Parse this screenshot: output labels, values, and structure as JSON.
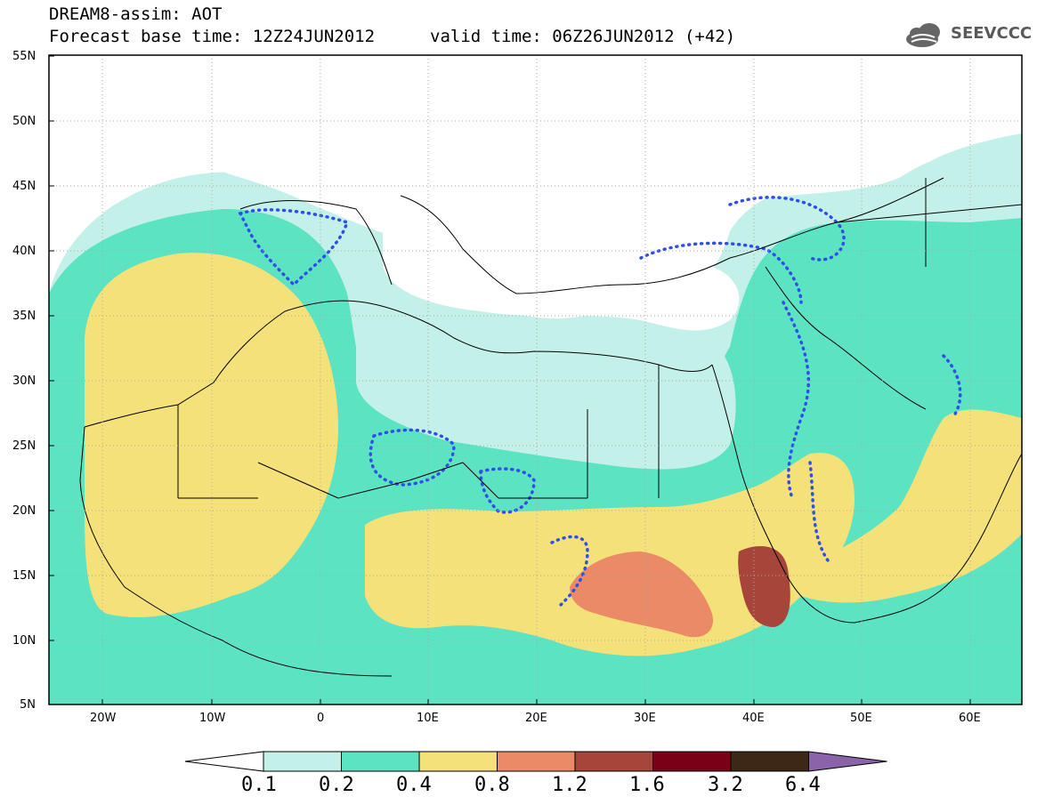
{
  "header": {
    "line1": "DREAM8-assim: AOT",
    "line2": "Forecast base time: 12Z24JUN2012",
    "valid": "valid time: 06Z26JUN2012 (+42)"
  },
  "logo": {
    "text": "SEEVCCC",
    "icon": "cloud-logo-icon"
  },
  "axes": {
    "lat_labels": [
      "55N",
      "50N",
      "45N",
      "40N",
      "35N",
      "30N",
      "25N",
      "20N",
      "15N",
      "10N",
      "5N"
    ],
    "lon_labels": [
      "20W",
      "10W",
      "0",
      "10E",
      "20E",
      "30E",
      "40E",
      "50E",
      "60E"
    ]
  },
  "colorbar": {
    "labels": [
      "0.1",
      "0.2",
      "0.4",
      "0.8",
      "1.2",
      "1.6",
      "3.2",
      "6.4"
    ],
    "colors": [
      "#ffffff",
      "#c4f0ea",
      "#5ce3c2",
      "#f5e17a",
      "#eb8a66",
      "#a6463a",
      "#7a0018",
      "#3d2817",
      "#8a63a8"
    ]
  },
  "levels": {
    "c1": "#c4f0ea",
    "c2": "#5ce3c2",
    "c3": "#f5e17a",
    "c4": "#eb8a66",
    "c5": "#a6463a"
  }
}
